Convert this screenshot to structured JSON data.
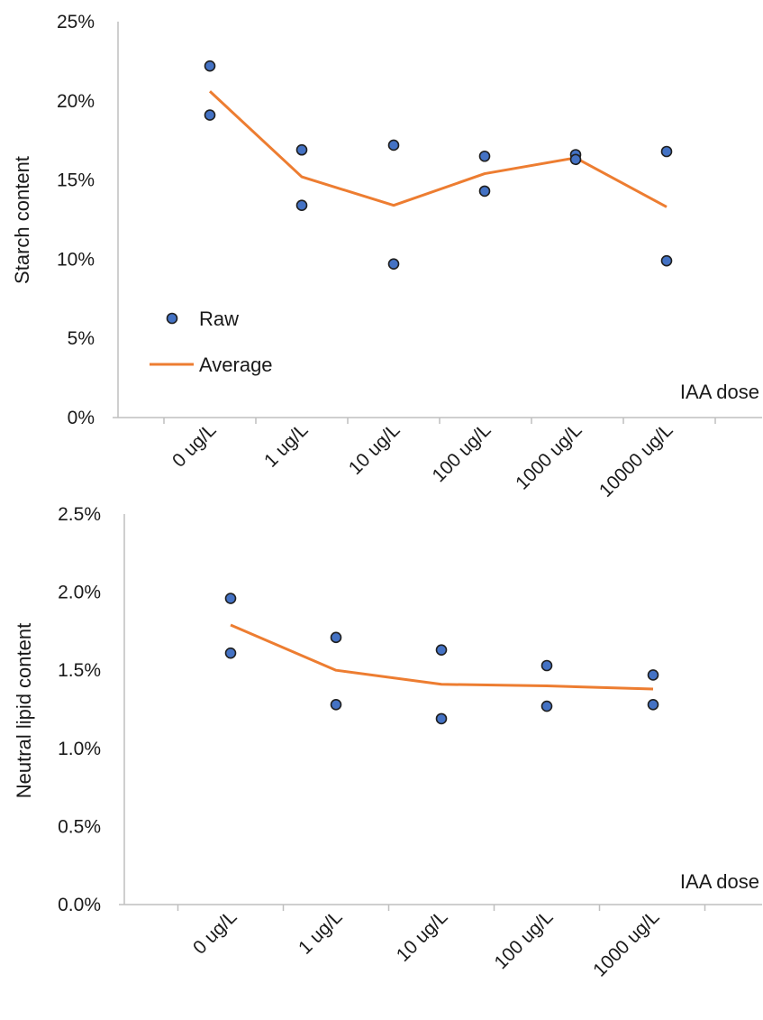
{
  "chart_data": [
    {
      "type": "scatter",
      "ylabel": "Starch content",
      "xlabel": "IAA dose",
      "categories": [
        "0 ug/L",
        "1 ug/L",
        "10 ug/L",
        "100 ug/L",
        "1000 ug/L",
        "10000 ug/L"
      ],
      "y_ticks": [
        "0%",
        "5%",
        "10%",
        "15%",
        "20%",
        "25%"
      ],
      "ylim": [
        0,
        0.25
      ],
      "legend": {
        "placement": "left",
        "entries": [
          "Raw",
          "Average"
        ]
      },
      "series": [
        {
          "name": "Raw",
          "kind": "points",
          "points": [
            {
              "cat": 0,
              "y": 0.222
            },
            {
              "cat": 0,
              "y": 0.191
            },
            {
              "cat": 1,
              "y": 0.169
            },
            {
              "cat": 1,
              "y": 0.134
            },
            {
              "cat": 2,
              "y": 0.172
            },
            {
              "cat": 2,
              "y": 0.097
            },
            {
              "cat": 3,
              "y": 0.165
            },
            {
              "cat": 3,
              "y": 0.143
            },
            {
              "cat": 4,
              "y": 0.166
            },
            {
              "cat": 4,
              "y": 0.163
            },
            {
              "cat": 5,
              "y": 0.168
            },
            {
              "cat": 5,
              "y": 0.099
            }
          ],
          "color": "#4472c4"
        },
        {
          "name": "Average",
          "kind": "line",
          "values": [
            0.206,
            0.152,
            0.134,
            0.154,
            0.164,
            0.133
          ],
          "color": "#ed7d31"
        }
      ]
    },
    {
      "type": "scatter",
      "ylabel": "Neutral lipid content",
      "xlabel": "IAA dose",
      "categories": [
        "0 ug/L",
        "1 ug/L",
        "10 ug/L",
        "100 ug/L",
        "1000 ug/L"
      ],
      "y_ticks": [
        "0.0%",
        "0.5%",
        "1.0%",
        "1.5%",
        "2.0%",
        "2.5%"
      ],
      "ylim": [
        0,
        0.025
      ],
      "series": [
        {
          "name": "Raw",
          "kind": "points",
          "points": [
            {
              "cat": 0,
              "y": 0.0196
            },
            {
              "cat": 0,
              "y": 0.0161
            },
            {
              "cat": 1,
              "y": 0.0171
            },
            {
              "cat": 1,
              "y": 0.0128
            },
            {
              "cat": 2,
              "y": 0.0163
            },
            {
              "cat": 2,
              "y": 0.0119
            },
            {
              "cat": 3,
              "y": 0.0153
            },
            {
              "cat": 3,
              "y": 0.0127
            },
            {
              "cat": 4,
              "y": 0.0147
            },
            {
              "cat": 4,
              "y": 0.0128
            }
          ],
          "color": "#4472c4"
        },
        {
          "name": "Average",
          "kind": "line",
          "values": [
            0.0179,
            0.015,
            0.0141,
            0.014,
            0.0138
          ],
          "color": "#ed7d31"
        }
      ]
    }
  ]
}
